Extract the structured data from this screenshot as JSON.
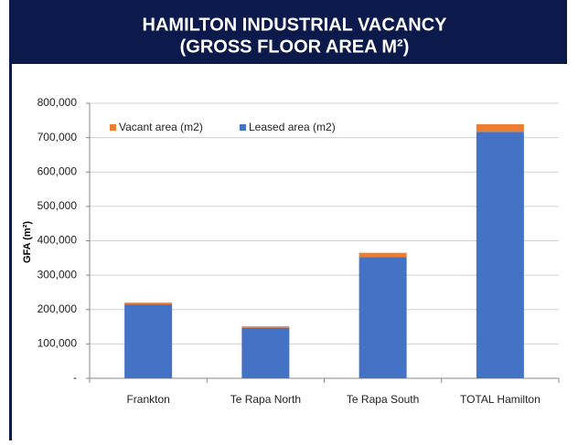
{
  "chart_data": {
    "type": "stacked_bar",
    "title": "HAMILTON INDUSTRIAL VACANCY",
    "subtitle": "(GROSS FLOOR AREA M²)",
    "y_label": "GFA (m²)",
    "categories": [
      "Frankton",
      "Te Rapa North",
      "Te Rapa South",
      "TOTAL Hamilton"
    ],
    "series": [
      {
        "name": "Leased area (m2)",
        "color": "#4472c4",
        "values": [
          215000,
          147000,
          353000,
          717000
        ]
      },
      {
        "name": "Vacant area (m2)",
        "color": "#ed7d31",
        "values": [
          5000,
          4000,
          12000,
          22000
        ]
      }
    ],
    "ylim": [
      0,
      800000
    ],
    "yticks": [
      {
        "value": 0,
        "label": "-"
      },
      {
        "value": 100000,
        "label": "100,000"
      },
      {
        "value": 200000,
        "label": "200,000"
      },
      {
        "value": 300000,
        "label": "300,000"
      },
      {
        "value": 400000,
        "label": "400,000"
      },
      {
        "value": 500000,
        "label": "500,000"
      },
      {
        "value": 600000,
        "label": "600,000"
      },
      {
        "value": 700000,
        "label": "700,000"
      },
      {
        "value": 800000,
        "label": "800,000"
      }
    ],
    "grid": true,
    "legend": "top-left"
  }
}
